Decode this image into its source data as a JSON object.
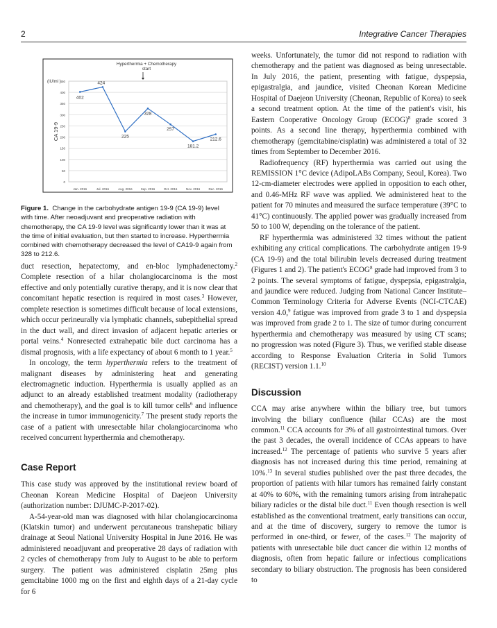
{
  "header": {
    "page_number": "2",
    "journal": "Integrative Cancer Therapies"
  },
  "chart_data": {
    "type": "line",
    "annotation": "Hyperthermia + Chemotherapy start",
    "annotation_at": "Sep. 2016",
    "ylabel": "CA 19-9",
    "yunit": "(IU/ml )",
    "ylim": [
      0,
      450
    ],
    "yticks": [
      0,
      50,
      100,
      150,
      200,
      250,
      300,
      350,
      400,
      450
    ],
    "grid": "horizontal",
    "categories": [
      "Jan. 2016",
      "Jul. 2016",
      "Aug. 2016",
      "Sep. 2016",
      "Oct. 2016",
      "Nov. 2016",
      "Dec. 2016"
    ],
    "values": [
      402,
      424,
      225,
      328,
      257,
      181.2,
      212.6
    ],
    "data_labels": [
      "402",
      "424",
      "225",
      "328",
      "257",
      "181.2",
      "212.6"
    ],
    "color": "#2f6fc4"
  },
  "caption": {
    "label": "Figure 1.",
    "text": "Change in the carbohydrate antigen 19-9 (CA 19-9) level with time. After neoadjuvant and preoperative radiation with chemotherapy, the CA 19-9 level was significantly lower than it was at the time of initial evaluation, but then started to increase. Hyperthermia combined with chemotherapy decreased the level of CA19-9 again from 328 to 212.6."
  },
  "left": {
    "paragraphs": [
      [
        "duct resection, hepatectomy, and en-bloc lymphadenectomy.",
        {
          "sup": "2"
        },
        " Complete resection of a hilar cholangiocarcinoma is the most effective and only potentially curative therapy, and it is now clear that concomitant hepatic resection is required in most cases.",
        {
          "sup": "3"
        },
        " However, complete resection is sometimes difficult because of local extensions, which occur perineurally via lymphatic channels, subepithelial spread in the duct wall, and direct invasion of adjacent hepatic arteries or portal veins.",
        {
          "sup": "4"
        },
        " Nonresected extrahepatic bile duct carcinoma has a dismal prognosis, with a life expectancy of about 6 month to 1 year.",
        {
          "sup": "5"
        }
      ],
      [
        "In oncology, the term ",
        {
          "i": "hyperthermia"
        },
        " refers to the treatment of malignant diseases by administering heat and generating electromagnetic induction. Hyperthermia is usually applied as an adjunct to an already established treatment modality (radiotherapy and chemotherapy), and the goal is to kill tumor cells",
        {
          "sup": "6"
        },
        " and influence the increase in tumor immunogenicity.",
        {
          "sup": "7"
        },
        " The present study reports the case of a patient with unresectable hilar cholangiocarcinoma who received concurrent hyperthermia and chemotherapy."
      ]
    ],
    "case_heading": "Case Report",
    "case_paragraphs": [
      [
        "This case study was approved by the institutional review board of Cheonan Korean Medicine Hospital of Daejeon University (authorization number: DJUMC-P-2017-02)."
      ],
      [
        "A-54-year-old man was diagnosed with hilar cholangiocarcinoma (Klatskin tumor) and underwent percutaneous transhepatic biliary drainage at Seoul National University Hospital in June 2016. He was administered neoadjuvant and preoperative 28 days of radiation with 2 cycles of chemotherapy from July to August to be able to perform surgery. The patient was administered cisplatin 25mg plus gemcitabine 1000 mg on the first and eighth days of a 21-day cycle for 6"
      ]
    ]
  },
  "right": {
    "paragraphs": [
      [
        "weeks. Unfortunately, the tumor did not respond to radiation with chemotherapy and the patient was diagnosed as being unresectable. In July 2016, the patient, presenting with fatigue, dyspepsia, epigastralgia, and jaundice, visited Cheonan Korean Medicine Hospital of Daejeon University (Cheonan, Republic of Korea) to seek a second treatment option. At the time of the patient's visit, his Eastern Cooperative Oncology Group (ECOG)",
        {
          "sup": "8"
        },
        " grade scored 3 points. As a second line therapy, hyperthermia combined with chemotherapy (gemcitabine/cisplatin) was administered a total of 32 times from September to December 2016."
      ],
      [
        "Radiofrequency (RF) hyperthermia was carried out using the REMISSION 1°C device (AdipoLABs Company, Seoul, Korea). Two 12-cm-diameter electrodes were applied in opposition to each other, and 0.46-MHz RF wave was applied. We administered heat to the patient for 70 minutes and measured the surface temperature (39°C to 41°C) continuously. The applied power was gradually increased from 50 to 100 W, depending on the tolerance of the patient."
      ],
      [
        "RF hyperthermia was administered 32 times without the patient exhibiting any critical complications. The carbohydrate antigen 19-9 (CA 19-9) and the total bilirubin levels decreased during treatment (Figures 1 and 2). The patient's ECOG",
        {
          "sup": "8"
        },
        " grade had improved from 3 to 2 points. The several symptoms of fatigue, dyspepsia, epigastralgia, and jaundice were reduced. Judging from National Cancer Institute–Common Terminology Criteria for Adverse Events (NCI-CTCAE) version 4.0,",
        {
          "sup": "9"
        },
        " fatigue was improved from grade 3 to 1 and dyspepsia was improved from grade 2 to 1. The size of tumor during concurrent hyperthermia and chemotherapy was measured by using CT scans; no progression was noted (Figure 3). Thus, we verified stable disease according to Response Evaluation Criteria in Solid Tumors (RECIST) version 1.1.",
        {
          "sup": "10"
        }
      ]
    ],
    "discussion_heading": "Discussion",
    "discussion_paragraphs": [
      [
        "CCA may arise anywhere within the biliary tree, but tumors involving the biliary confluence (hilar CCAs) are the most common.",
        {
          "sup": "11"
        },
        " CCA accounts for 3% of all gastrointestinal tumors. Over the past 3 decades, the overall incidence of CCAs appears to have increased.",
        {
          "sup": "12"
        },
        " The percentage of patients who survive 5 years after diagnosis has not increased during this time period, remaining at 10%.",
        {
          "sup": "13"
        },
        " In several studies published over the past three decades, the proportion of patients with hilar tumors has remained fairly constant at 40% to 60%, with the remaining tumors arising from intrahepatic biliary radicles or the distal bile duct.",
        {
          "sup": "11"
        },
        " Even though resection is well established as the conventional treatment, early transitions can occur, and at the time of discovery, surgery to remove the tumor is performed in one-third, or fewer, of the cases.",
        {
          "sup": "12"
        },
        " The majority of patients with unresectable bile duct cancer die within 12 months of diagnosis, often from hepatic failure or infectious complications secondary to biliary obstruction. The prognosis has been considered to"
      ]
    ]
  }
}
